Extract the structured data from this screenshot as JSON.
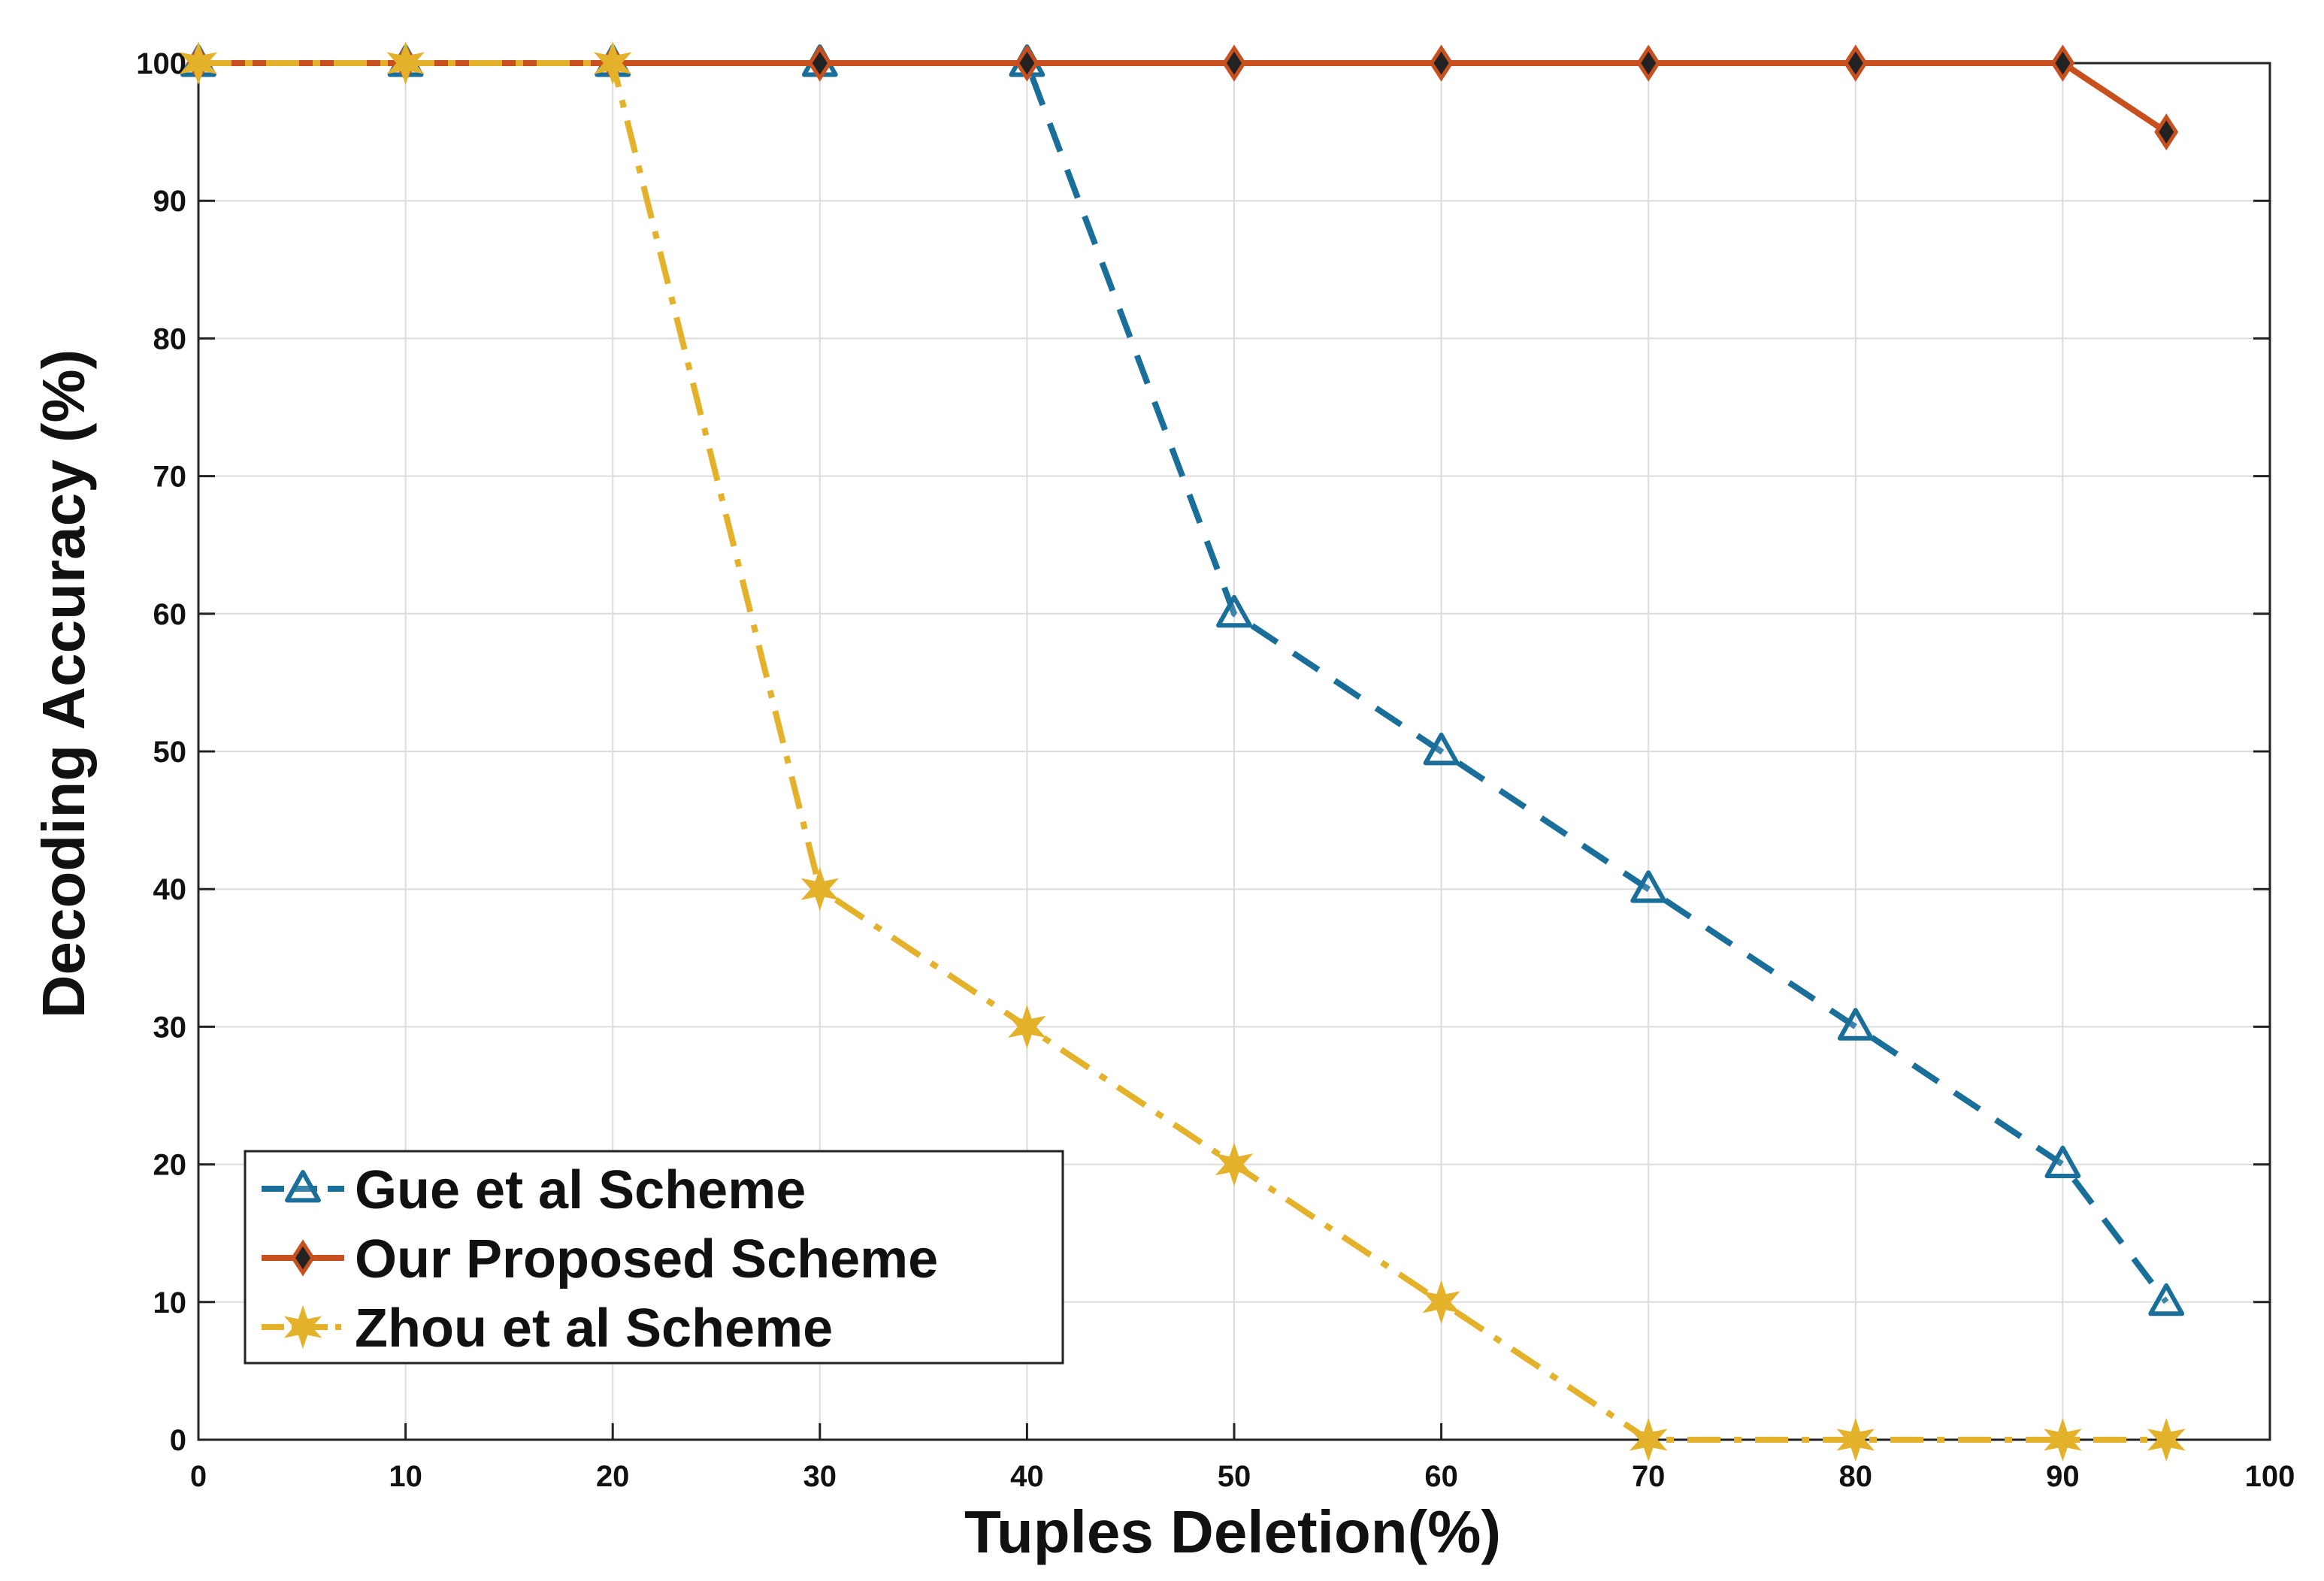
{
  "chart_data": {
    "type": "line",
    "title": "",
    "xlabel": "Tuples Deletion(%)",
    "ylabel": "Decoding Accuracy (%)",
    "xlim": [
      0,
      100
    ],
    "ylim": [
      0,
      100
    ],
    "xticks": [
      0,
      10,
      20,
      30,
      40,
      50,
      60,
      70,
      80,
      90,
      100
    ],
    "yticks": [
      0,
      10,
      20,
      30,
      40,
      50,
      60,
      70,
      80,
      90,
      100
    ],
    "grid": true,
    "legend_position": "bottom-left",
    "series": [
      {
        "name": "Gue et al Scheme",
        "color": "#1a6f9a",
        "marker": "triangle",
        "line_style": "dashed",
        "x": [
          0,
          10,
          20,
          30,
          40,
          50,
          60,
          70,
          80,
          90,
          95
        ],
        "y": [
          100,
          100,
          100,
          100,
          100,
          60,
          50,
          40,
          30,
          20,
          10
        ]
      },
      {
        "name": "Our Proposed Scheme",
        "color": "#c8501e",
        "marker": "diamond",
        "line_style": "solid",
        "x": [
          0,
          10,
          20,
          30,
          40,
          50,
          60,
          70,
          80,
          90,
          95
        ],
        "y": [
          100,
          100,
          100,
          100,
          100,
          100,
          100,
          100,
          100,
          100,
          95
        ]
      },
      {
        "name": "Zhou et al Scheme",
        "color": "#e3b22a",
        "marker": "star",
        "line_style": "dashdot",
        "x": [
          0,
          10,
          20,
          30,
          40,
          50,
          60,
          70,
          80,
          90,
          95
        ],
        "y": [
          100,
          100,
          100,
          40,
          30,
          20,
          10,
          0,
          0,
          0,
          0
        ]
      }
    ]
  }
}
